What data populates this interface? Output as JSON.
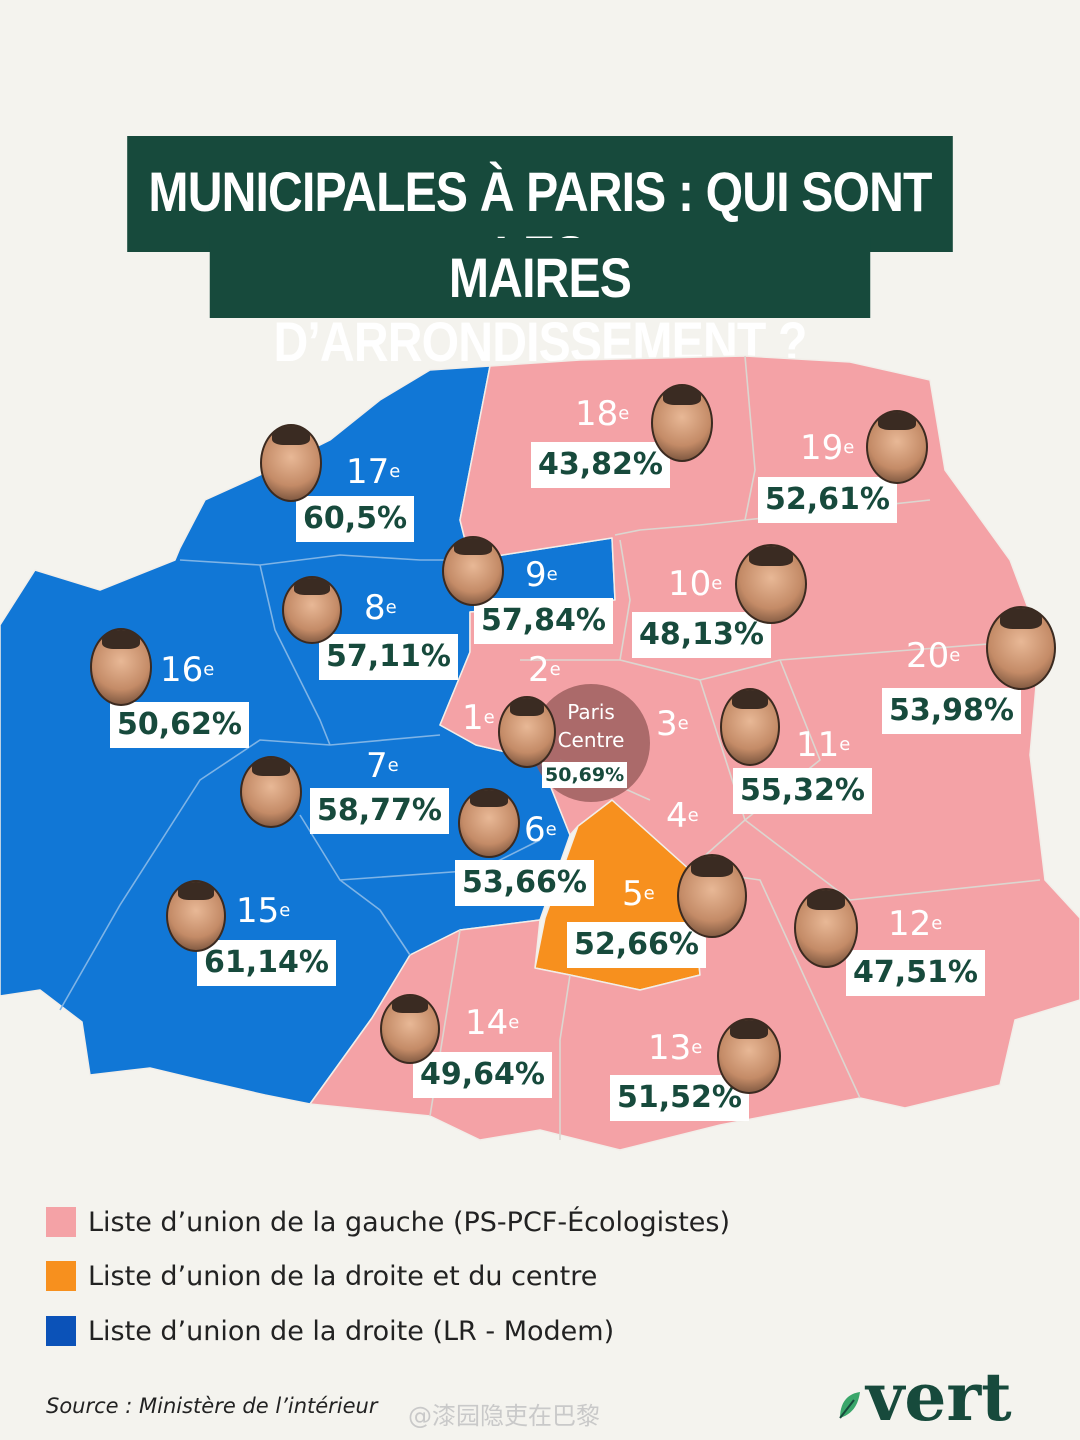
{
  "title": {
    "line1": "MUNICIPALES À PARIS : QUI SONT LES",
    "line2": "MAIRES D’ARRONDISSEMENT ?"
  },
  "colors": {
    "gauche": "#f4a2a6",
    "droite_centre": "#f7901e",
    "droite": "#1177d6",
    "title_bg": "#174a3c",
    "background": "#f4f3ee"
  },
  "districts": [
    {
      "id": "18",
      "suffix": "e",
      "pct": "43,82%",
      "bloc": "gauche"
    },
    {
      "id": "19",
      "suffix": "e",
      "pct": "52,61%",
      "bloc": "gauche"
    },
    {
      "id": "17",
      "suffix": "e",
      "pct": "60,5%",
      "bloc": "droite"
    },
    {
      "id": "9",
      "suffix": "e",
      "pct": "57,84%",
      "bloc": "droite"
    },
    {
      "id": "10",
      "suffix": "e",
      "pct": "48,13%",
      "bloc": "gauche"
    },
    {
      "id": "8",
      "suffix": "e",
      "pct": "57,11%",
      "bloc": "droite"
    },
    {
      "id": "16",
      "suffix": "e",
      "pct": "50,62%",
      "bloc": "droite"
    },
    {
      "id": "20",
      "suffix": "e",
      "pct": "53,98%",
      "bloc": "gauche"
    },
    {
      "id": "11",
      "suffix": "e",
      "pct": "55,32%",
      "bloc": "gauche"
    },
    {
      "id": "7",
      "suffix": "e",
      "pct": "58,77%",
      "bloc": "droite"
    },
    {
      "id": "6",
      "suffix": "e",
      "pct": "53,66%",
      "bloc": "droite"
    },
    {
      "id": "5",
      "suffix": "e",
      "pct": "52,66%",
      "bloc": "droite_centre"
    },
    {
      "id": "12",
      "suffix": "e",
      "pct": "47,51%",
      "bloc": "gauche"
    },
    {
      "id": "15",
      "suffix": "e",
      "pct": "61,14%",
      "bloc": "droite"
    },
    {
      "id": "14",
      "suffix": "e",
      "pct": "49,64%",
      "bloc": "gauche"
    },
    {
      "id": "13",
      "suffix": "e",
      "pct": "51,52%",
      "bloc": "gauche"
    }
  ],
  "labels_only": [
    {
      "id": "2",
      "suffix": "e"
    },
    {
      "id": "1",
      "suffix": "e"
    },
    {
      "id": "3",
      "suffix": "e"
    },
    {
      "id": "4",
      "suffix": "e"
    }
  ],
  "paris_centre": {
    "line1": "Paris",
    "line2": "Centre",
    "pct": "50,69%"
  },
  "legend": [
    {
      "label": "Liste d’union de la gauche (PS-PCF-Écologistes)",
      "color": "#f4a2a6"
    },
    {
      "label": "Liste d’union de la droite et du centre",
      "color": "#f7901e"
    },
    {
      "label": "Liste d’union de la droite (LR - Modem)",
      "color": "#1177d6"
    }
  ],
  "source": "Source : Ministère de l’intérieur",
  "watermark": "@漆园隐吏在巴黎",
  "logo": "vert"
}
